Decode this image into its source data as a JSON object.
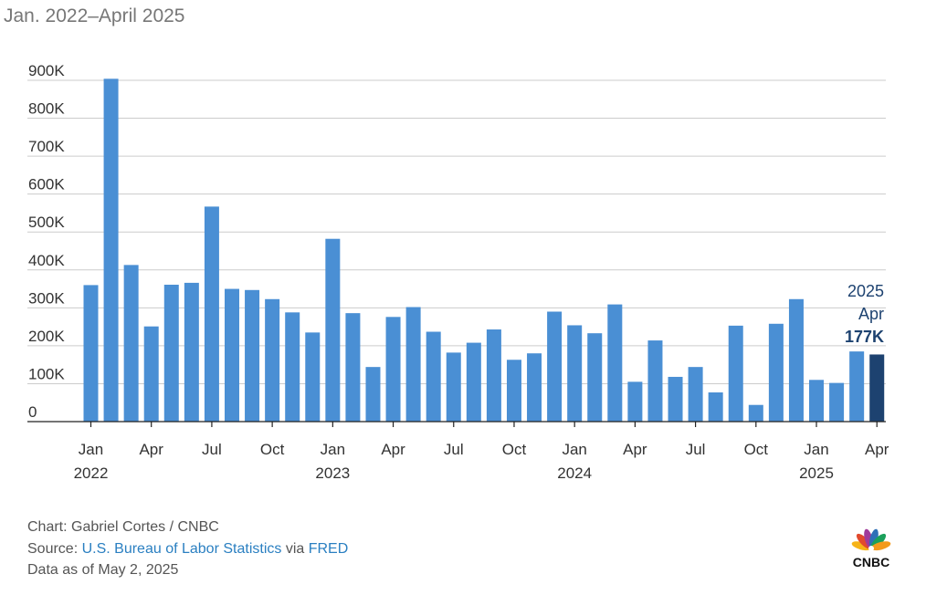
{
  "subtitle": "Jan. 2022–April 2025",
  "chart_data": {
    "type": "bar",
    "y_ticks": [
      0,
      100,
      200,
      300,
      400,
      500,
      600,
      700,
      800,
      900
    ],
    "y_tick_labels": [
      "0",
      "100K",
      "200K",
      "300K",
      "400K",
      "500K",
      "600K",
      "700K",
      "800K",
      "900K"
    ],
    "ylim": [
      0,
      900
    ],
    "units": "thousands",
    "grid": true,
    "x_tick_labels": [
      {
        "index": 0,
        "month": "Jan",
        "year": "2022"
      },
      {
        "index": 3,
        "month": "Apr",
        "year": ""
      },
      {
        "index": 6,
        "month": "Jul",
        "year": ""
      },
      {
        "index": 9,
        "month": "Oct",
        "year": ""
      },
      {
        "index": 12,
        "month": "Jan",
        "year": "2023"
      },
      {
        "index": 15,
        "month": "Apr",
        "year": ""
      },
      {
        "index": 18,
        "month": "Jul",
        "year": ""
      },
      {
        "index": 21,
        "month": "Oct",
        "year": ""
      },
      {
        "index": 24,
        "month": "Jan",
        "year": "2024"
      },
      {
        "index": 27,
        "month": "Apr",
        "year": ""
      },
      {
        "index": 30,
        "month": "Jul",
        "year": ""
      },
      {
        "index": 33,
        "month": "Oct",
        "year": ""
      },
      {
        "index": 36,
        "month": "Jan",
        "year": "2025"
      },
      {
        "index": 39,
        "month": "Apr",
        "year": ""
      }
    ],
    "categories": [
      "Jan 2022",
      "Feb 2022",
      "Mar 2022",
      "Apr 2022",
      "May 2022",
      "Jun 2022",
      "Jul 2022",
      "Aug 2022",
      "Sep 2022",
      "Oct 2022",
      "Nov 2022",
      "Dec 2022",
      "Jan 2023",
      "Feb 2023",
      "Mar 2023",
      "Apr 2023",
      "May 2023",
      "Jun 2023",
      "Jul 2023",
      "Aug 2023",
      "Sep 2023",
      "Oct 2023",
      "Nov 2023",
      "Dec 2023",
      "Jan 2024",
      "Feb 2024",
      "Mar 2024",
      "Apr 2024",
      "May 2024",
      "Jun 2024",
      "Jul 2024",
      "Aug 2024",
      "Sep 2024",
      "Oct 2024",
      "Nov 2024",
      "Dec 2024",
      "Jan 2025",
      "Feb 2025",
      "Mar 2025",
      "Apr 2025"
    ],
    "values": [
      360,
      904,
      413,
      251,
      361,
      366,
      567,
      350,
      347,
      323,
      288,
      235,
      482,
      286,
      144,
      276,
      302,
      237,
      182,
      208,
      243,
      163,
      180,
      290,
      254,
      233,
      309,
      105,
      214,
      118,
      144,
      77,
      253,
      44,
      258,
      323,
      110,
      102,
      185,
      177
    ],
    "bar_color": "#4a8fd4",
    "highlight_color": "#1d4270",
    "highlight_index": 39,
    "annotation": {
      "year": "2025",
      "month": "Apr",
      "value": "177K"
    }
  },
  "credits": {
    "chart_line": "Chart: Gabriel Cortes / CNBC",
    "source_prefix": "Source: ",
    "source_link": "U.S. Bureau of Labor Statistics",
    "source_via": " via ",
    "source_link2": "FRED",
    "data_as_of": "Data as of May 2, 2025"
  },
  "logo": {
    "text": "CNBC"
  }
}
